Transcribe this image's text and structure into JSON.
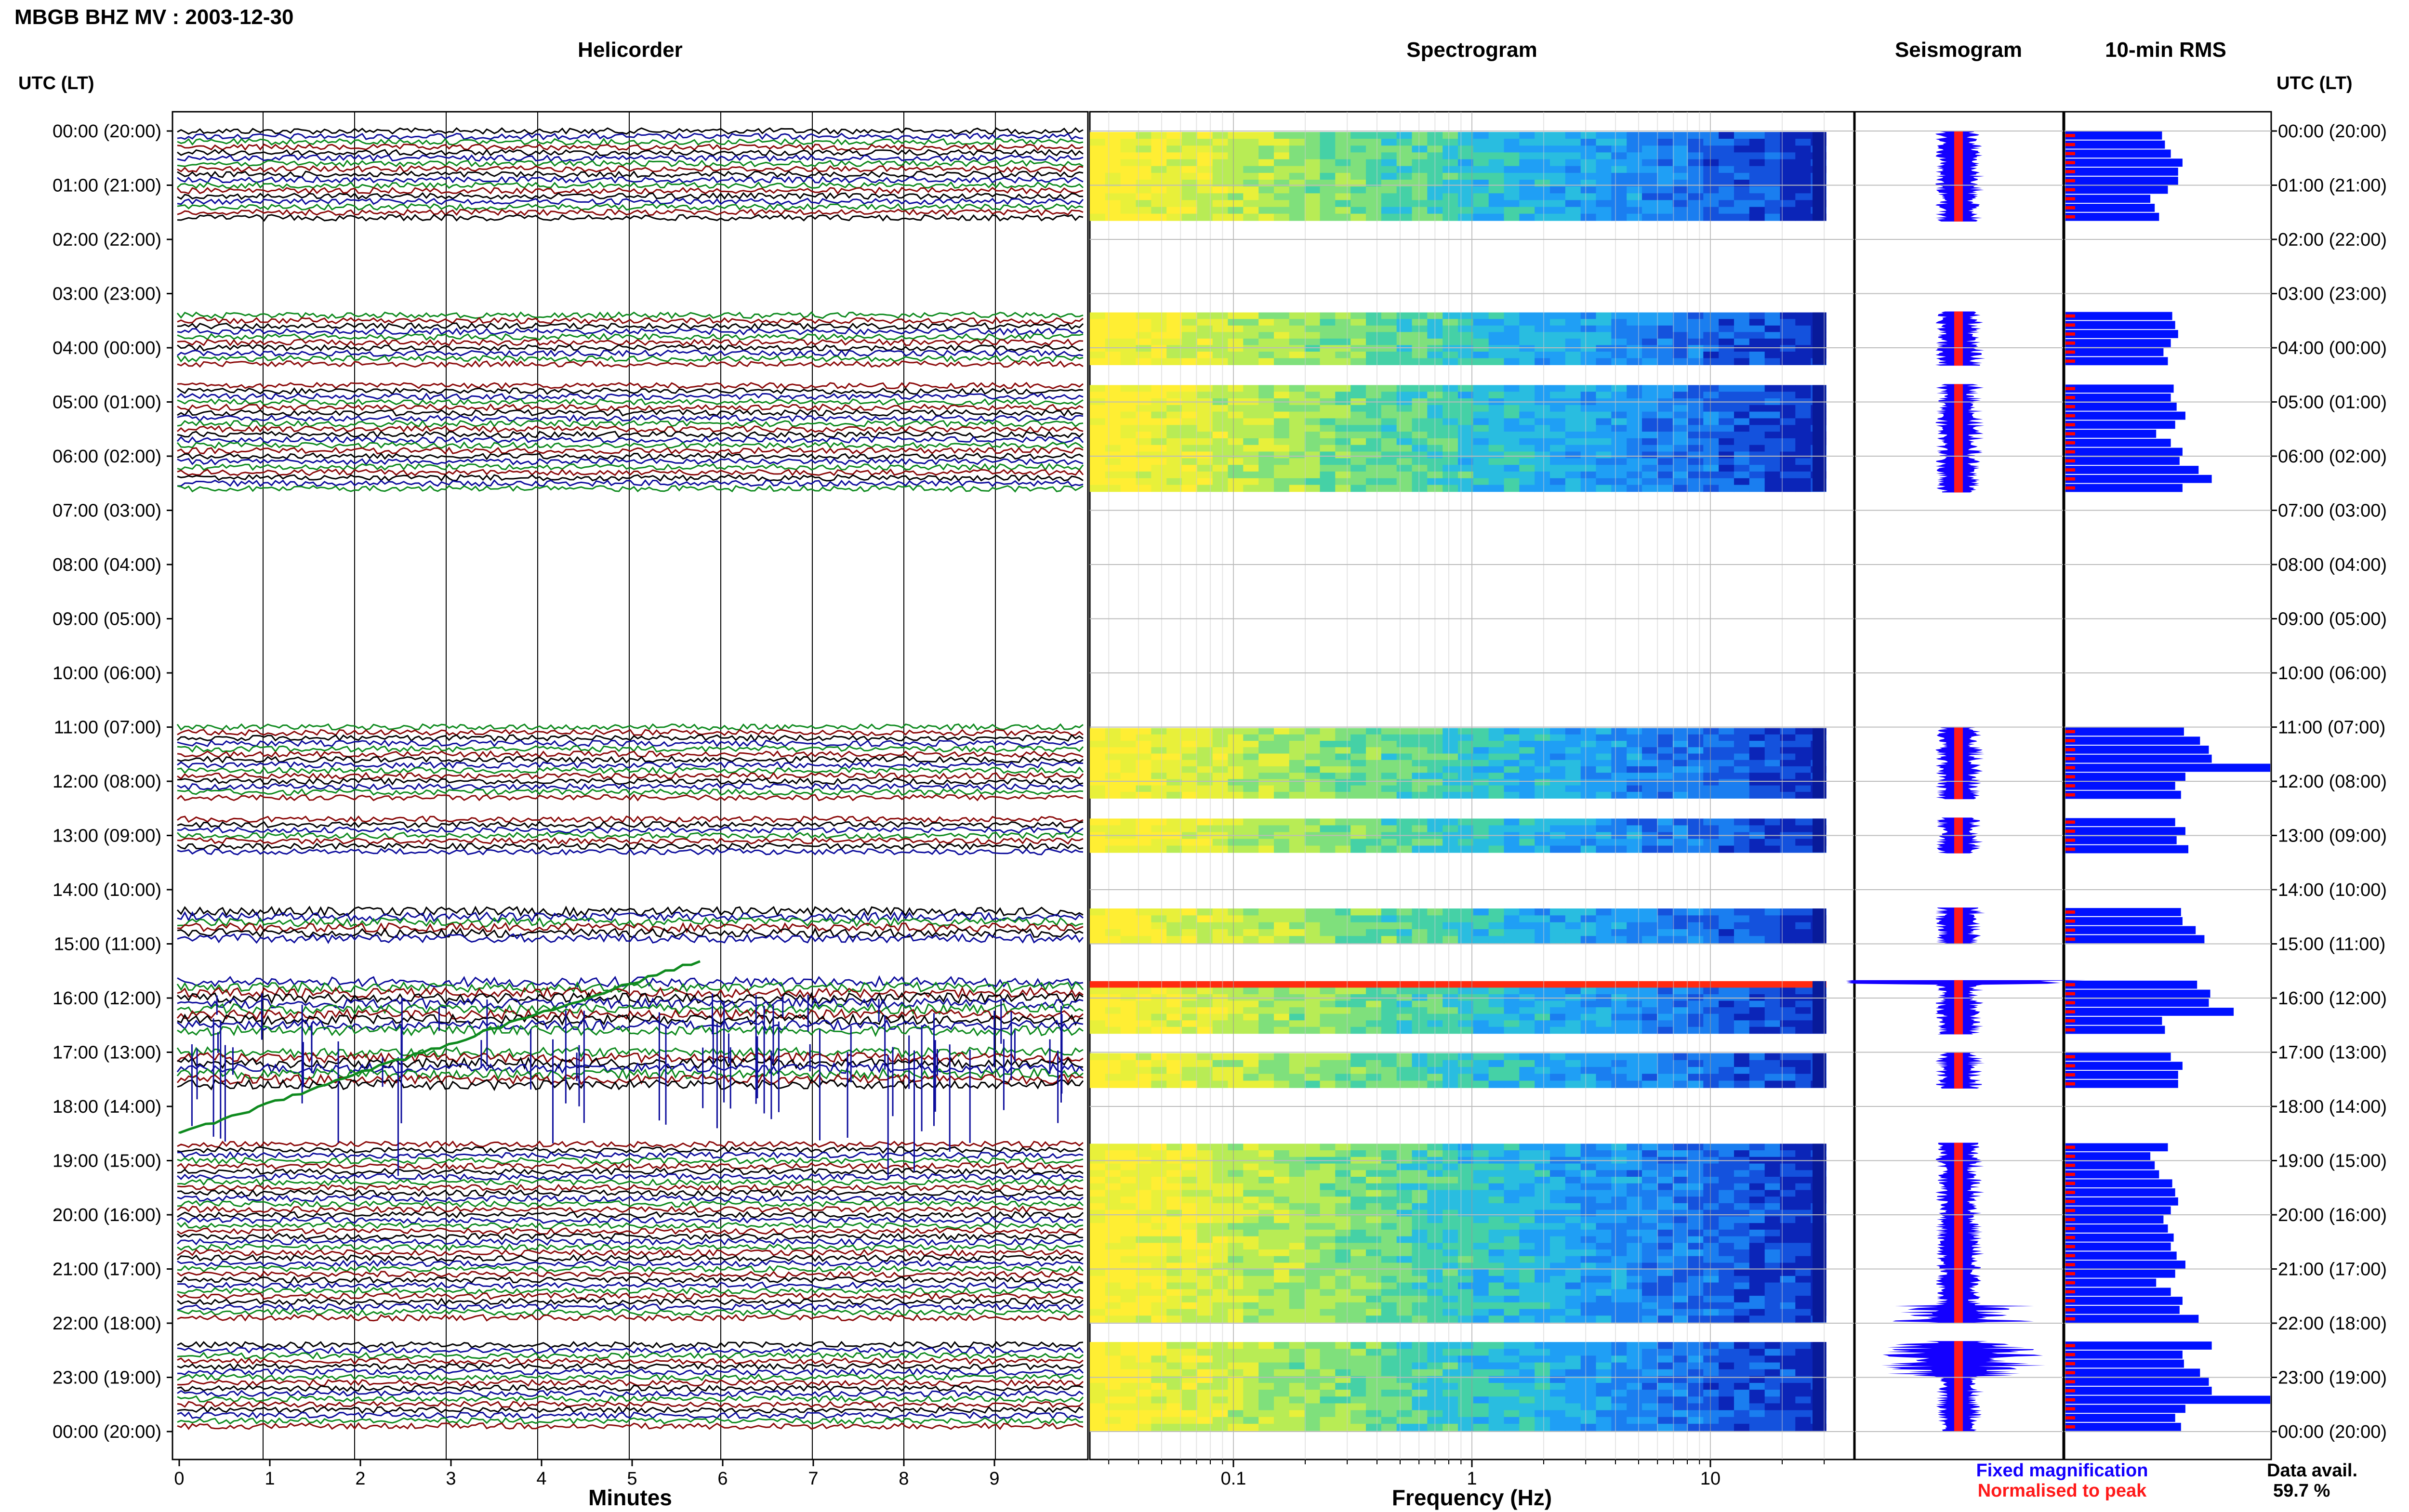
{
  "title": "MBGB BHZ MV : 2003-12-30",
  "panels": {
    "helicorder": "Helicorder",
    "spectrogram": "Spectrogram",
    "seismogram": "Seismogram",
    "rms": "10-min RMS"
  },
  "time_axis_label": "UTC (LT)",
  "row_labels": [
    "00:00 (20:00)",
    "01:00 (21:00)",
    "02:00 (22:00)",
    "03:00 (23:00)",
    "04:00 (00:00)",
    "05:00 (01:00)",
    "06:00 (02:00)",
    "07:00 (03:00)",
    "08:00 (04:00)",
    "09:00 (05:00)",
    "10:00 (06:00)",
    "11:00 (07:00)",
    "12:00 (08:00)",
    "13:00 (09:00)",
    "14:00 (10:00)",
    "15:00 (11:00)",
    "16:00 (12:00)",
    "17:00 (13:00)",
    "18:00 (14:00)",
    "19:00 (15:00)",
    "20:00 (16:00)",
    "21:00 (17:00)",
    "22:00 (18:00)",
    "23:00 (19:00)",
    "00:00 (20:00)"
  ],
  "x_axes": {
    "minutes": {
      "label": "Minutes",
      "ticks": [
        "0",
        "1",
        "2",
        "3",
        "4",
        "5",
        "6",
        "7",
        "8",
        "9"
      ],
      "range": [
        0,
        10
      ]
    },
    "frequency": {
      "label": "Frequency (Hz)",
      "ticks": [
        "0.1",
        "1",
        "10"
      ],
      "scale": "log",
      "range": [
        0.025,
        40
      ]
    }
  },
  "legend": {
    "fixed": "Fixed magnification",
    "normalised": "Normalised to peak",
    "fixed_color": "#1400ff",
    "normalised_color": "#ff1a1a"
  },
  "data_avail": {
    "label": "Data avail.",
    "value": "59.7 %"
  },
  "colors": {
    "black": "#000000",
    "blue": "#0d0d9c",
    "green": "#0e8a1e",
    "red": "#8b0a0a",
    "rms_fill": "#0011ff",
    "rms_peak": "#ff0000"
  },
  "chart_data": {
    "type": "heatmap",
    "hours": 24,
    "segments_10min": [
      {
        "start_hour": 0.0,
        "end_hour": 1.67
      },
      {
        "start_hour": 3.33,
        "end_hour": 4.33
      },
      {
        "start_hour": 4.67,
        "end_hour": 6.67
      },
      {
        "start_hour": 11.0,
        "end_hour": 12.33
      },
      {
        "start_hour": 12.67,
        "end_hour": 13.33
      },
      {
        "start_hour": 14.33,
        "end_hour": 15.0
      },
      {
        "start_hour": 15.67,
        "end_hour": 16.67
      },
      {
        "start_hour": 17.0,
        "end_hour": 17.67
      },
      {
        "start_hour": 18.67,
        "end_hour": 22.0
      },
      {
        "start_hour": 22.33,
        "end_hour": 24.0
      }
    ],
    "rms_values": [
      66,
      68,
      72,
      80,
      77,
      77,
      70,
      58,
      61,
      64,
      73,
      75,
      77,
      72,
      67,
      70,
      74,
      72,
      76,
      82,
      75,
      62,
      72,
      80,
      78,
      91,
      100,
      80,
      81,
      92,
      98,
      100,
      140,
      82,
      75,
      79,
      75,
      82,
      76,
      84,
      79,
      80,
      89,
      95,
      90,
      99,
      98,
      115
    ]
  }
}
